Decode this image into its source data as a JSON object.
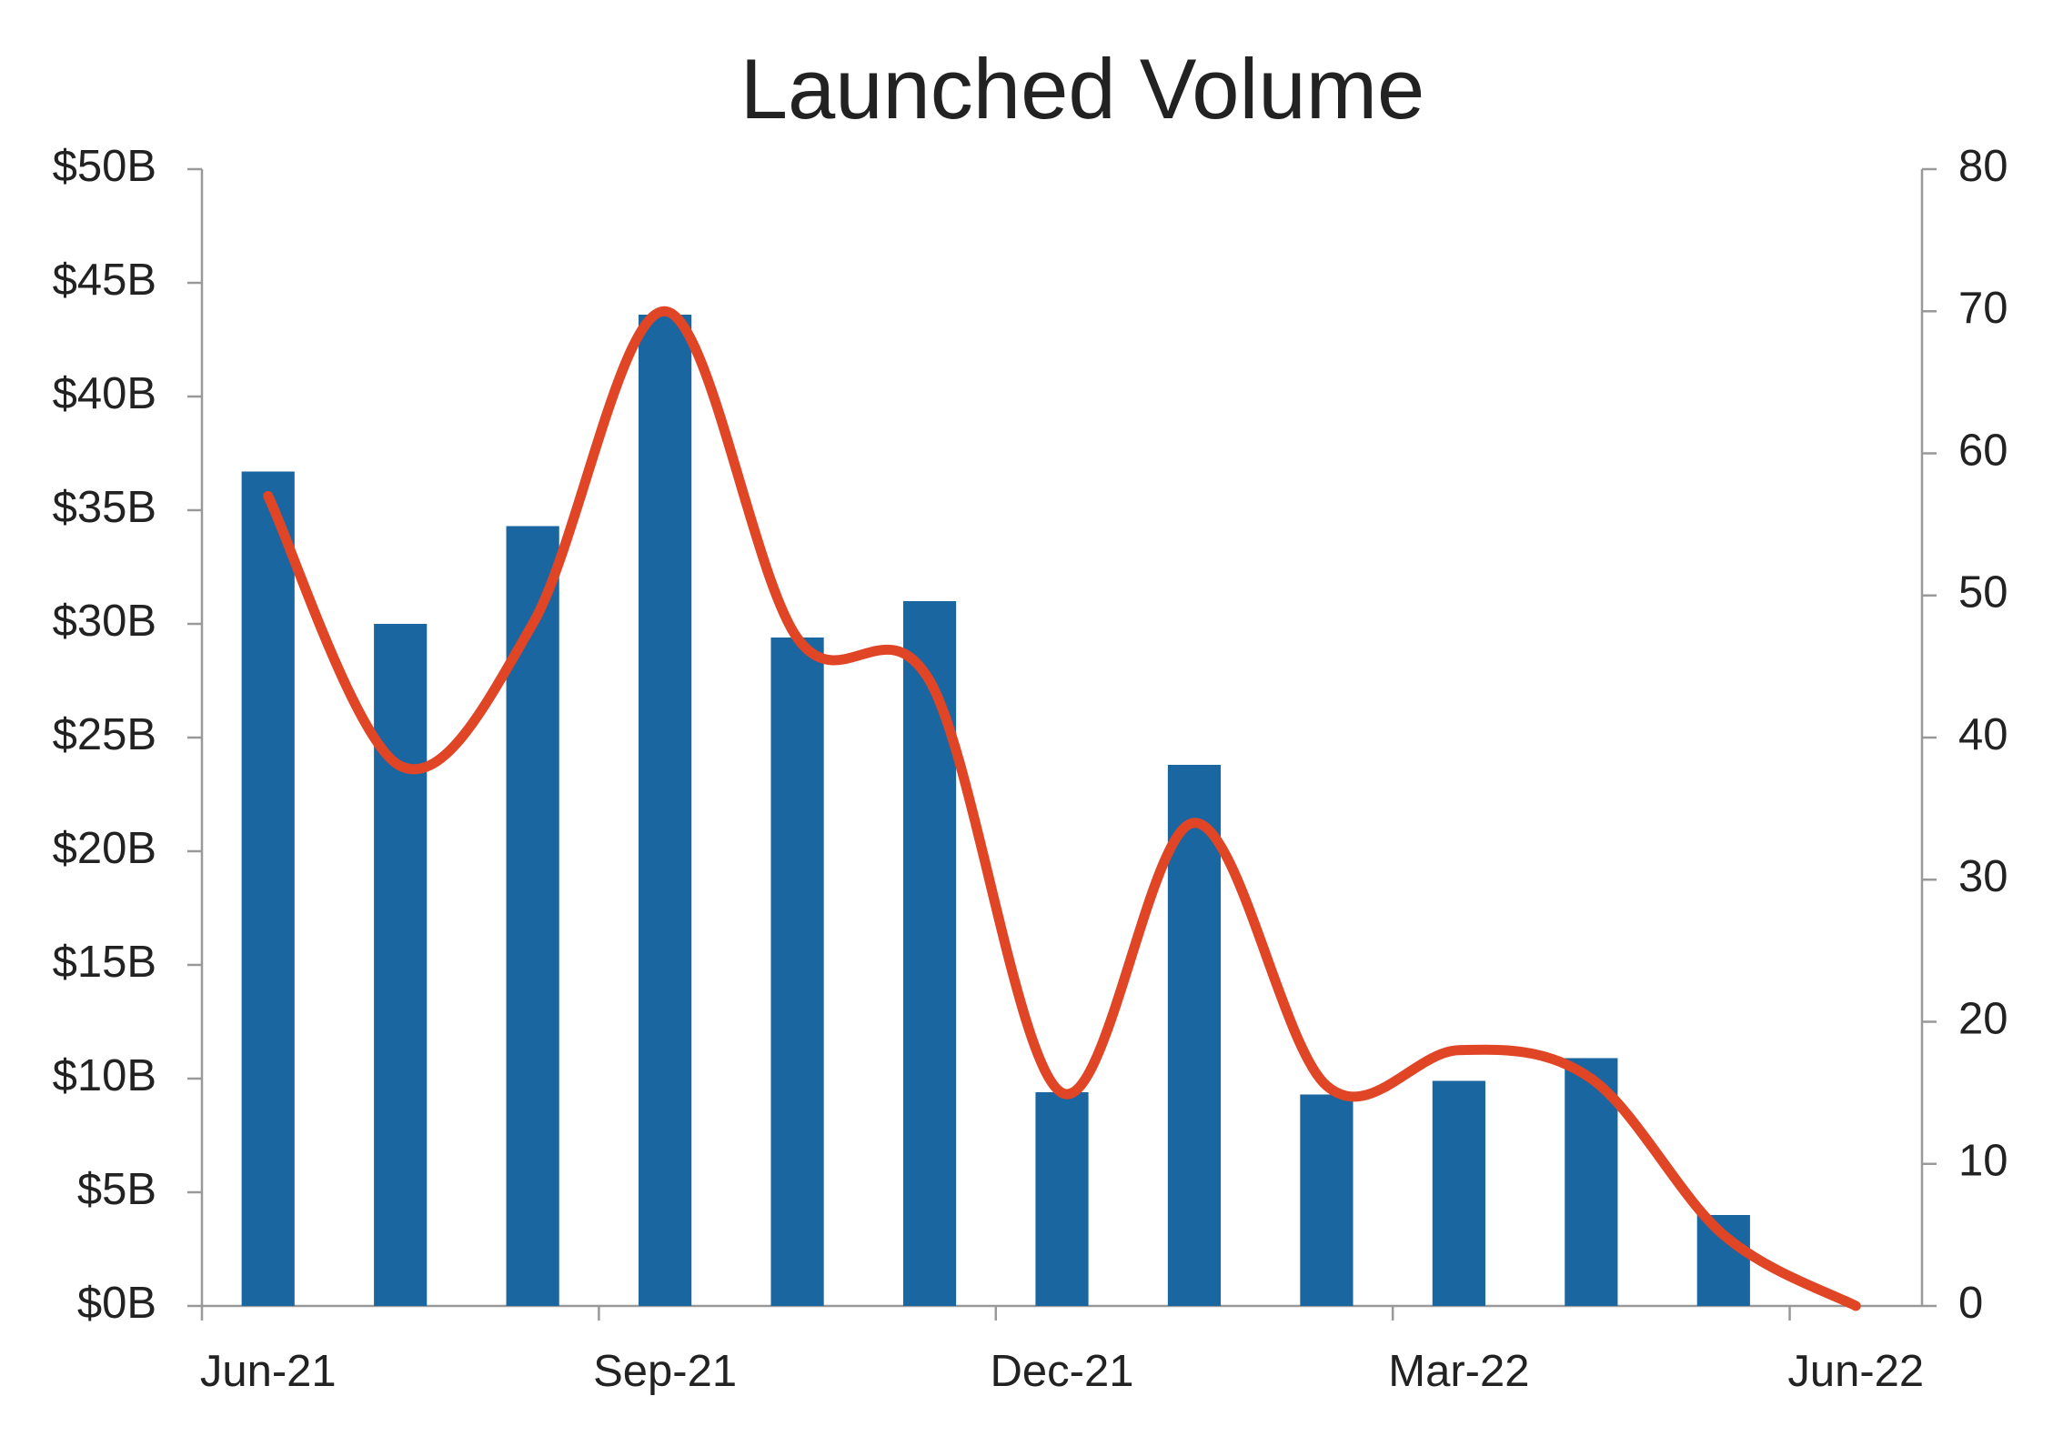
{
  "chart_data": {
    "type": "bar_line",
    "title": "Launched Volume",
    "categories": [
      "Jun-21",
      null,
      null,
      "Sep-21",
      null,
      null,
      "Dec-21",
      null,
      null,
      "Mar-22",
      null,
      null,
      "Jun-22"
    ],
    "series": [
      {
        "type": "bar",
        "color": "#1a66a0",
        "values": [
          36.7,
          30,
          34.3,
          43.6,
          29.4,
          31,
          9.4,
          23.8,
          9.3,
          9.9,
          10.9,
          4,
          null
        ]
      },
      {
        "type": "line",
        "axis": "y2",
        "color": "#e04526",
        "values": [
          57,
          38,
          48,
          70,
          47,
          44,
          15,
          34,
          15.5,
          18,
          16,
          5,
          0
        ]
      }
    ],
    "ylim": [
      0,
      50
    ],
    "yticks": [
      {
        "value": 0,
        "label": "$0B"
      },
      {
        "value": 5,
        "label": "$5B"
      },
      {
        "value": 10,
        "label": "$10B"
      },
      {
        "value": 15,
        "label": "$15B"
      },
      {
        "value": 20,
        "label": "$20B"
      },
      {
        "value": 25,
        "label": "$25B"
      },
      {
        "value": 30,
        "label": "$30B"
      },
      {
        "value": 35,
        "label": "$35B"
      },
      {
        "value": 40,
        "label": "$40B"
      },
      {
        "value": 45,
        "label": "$45B"
      },
      {
        "value": 50,
        "label": "$50B"
      }
    ],
    "y2lim": [
      0,
      80
    ],
    "y2ticks": [
      0,
      10,
      20,
      30,
      40,
      50,
      60,
      70,
      80
    ],
    "grid": false
  }
}
